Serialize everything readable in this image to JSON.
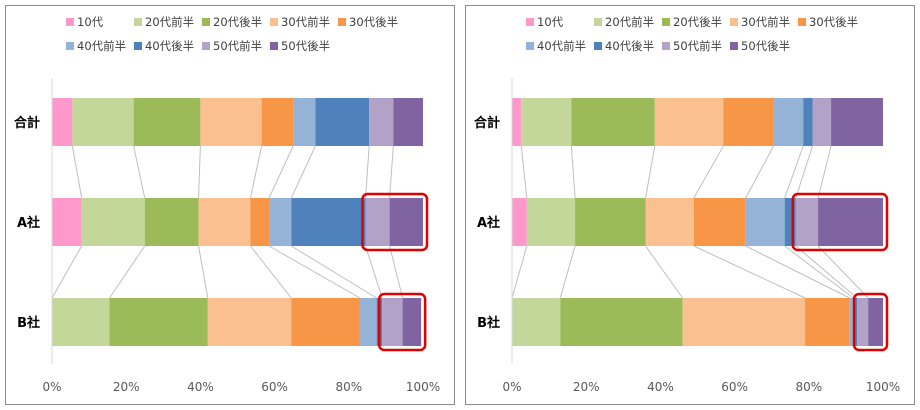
{
  "colors": {
    "10代": "#ff99cc",
    "20代前半": "#c4d79b",
    "20代後半": "#9bbb59",
    "30代前半": "#fac090",
    "30代後半": "#f79646",
    "40代前半": "#95b3d7",
    "40代後半": "#4f81bd",
    "50代前半": "#b3a2c7",
    "50代後半": "#8064a2",
    "highlight": "#e00000",
    "connector": "#bfbfbf",
    "axis": "#d9d9d9"
  },
  "chart_data": [
    {
      "type": "bar",
      "orientation": "horizontal",
      "stacked": "percent",
      "categories": [
        "合計",
        "A社",
        "B社"
      ],
      "series": [
        {
          "name": "10代",
          "values": [
            5.5,
            8,
            0
          ]
        },
        {
          "name": "20代前半",
          "values": [
            16.5,
            17,
            15.5
          ]
        },
        {
          "name": "20代後半",
          "values": [
            18,
            14.5,
            26.5
          ]
        },
        {
          "name": "30代前半",
          "values": [
            16.5,
            14,
            22.5
          ]
        },
        {
          "name": "30代後半",
          "values": [
            8.5,
            5,
            18.5
          ]
        },
        {
          "name": "40代前半",
          "values": [
            6,
            6,
            4.5
          ]
        },
        {
          "name": "40代後半",
          "values": [
            14.5,
            20,
            1.5
          ]
        },
        {
          "name": "50代前半",
          "values": [
            6.5,
            6.5,
            5.5
          ]
        },
        {
          "name": "50代後半",
          "values": [
            8,
            9,
            5
          ]
        }
      ],
      "xticks": [
        "0%",
        "20%",
        "40%",
        "60%",
        "80%",
        "100%"
      ],
      "xlim": [
        0,
        100
      ],
      "legend": "top",
      "grid": false,
      "highlight_series": [
        "50代前半",
        "50代後半"
      ],
      "highlight_categories": [
        "A社",
        "B社"
      ]
    },
    {
      "type": "bar",
      "orientation": "horizontal",
      "stacked": "percent",
      "categories": [
        "合計",
        "A社",
        "B社"
      ],
      "series": [
        {
          "name": "10代",
          "values": [
            2.5,
            4,
            0
          ]
        },
        {
          "name": "20代前半",
          "values": [
            13.5,
            13,
            13
          ]
        },
        {
          "name": "20代後半",
          "values": [
            22.5,
            19,
            33
          ]
        },
        {
          "name": "30代前半",
          "values": [
            18.5,
            13,
            33
          ]
        },
        {
          "name": "30代後半",
          "values": [
            13.5,
            14,
            12
          ]
        },
        {
          "name": "40代前半",
          "values": [
            8,
            10.5,
            1
          ]
        },
        {
          "name": "40代後半",
          "values": [
            2.5,
            3,
            1
          ]
        },
        {
          "name": "50代前半",
          "values": [
            5,
            6,
            3
          ]
        },
        {
          "name": "50代後半",
          "values": [
            14,
            17.5,
            4
          ]
        }
      ],
      "xticks": [
        "0%",
        "20%",
        "40%",
        "60%",
        "80%",
        "100%"
      ],
      "xlim": [
        0,
        100
      ],
      "legend": "top",
      "grid": false,
      "highlight_series": [
        "50代前半",
        "50代後半"
      ],
      "highlight_categories": [
        "A社",
        "B社"
      ]
    }
  ]
}
